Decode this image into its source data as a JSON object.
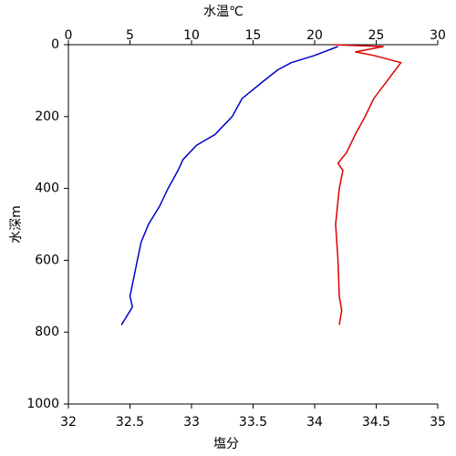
{
  "chart_data": {
    "type": "line",
    "x2label": "水温℃",
    "xlabel": "塩分",
    "ylabel": "水深m",
    "x2label_color": "#0000cc",
    "xlabel_color": "#cc0000",
    "xlim": [
      32,
      35
    ],
    "xticks": [
      32,
      32.5,
      33,
      33.5,
      34,
      34.5,
      35
    ],
    "x2lim": [
      0,
      30
    ],
    "x2ticks": [
      0,
      5,
      10,
      15,
      20,
      25,
      30
    ],
    "ylim": [
      0,
      1000
    ],
    "yticks": [
      0,
      200,
      400,
      600,
      800,
      1000
    ],
    "y_inverted": true,
    "series": [
      {
        "color": "#0000cc",
        "axis": "x2",
        "x": [
          21.9,
          20.0,
          18.1,
          17.0,
          15.9,
          14.1,
          13.3,
          11.9,
          10.4,
          9.3,
          8.9,
          8.1,
          7.4,
          6.5,
          5.9,
          5.6,
          5.3,
          5.0,
          5.2,
          4.3
        ],
        "y": [
          5,
          30,
          50,
          70,
          100,
          150,
          200,
          250,
          280,
          320,
          350,
          400,
          450,
          500,
          550,
          600,
          650,
          700,
          730,
          780
        ]
      },
      {
        "color": "#dd0000",
        "axis": "x",
        "x": [
          34.15,
          34.56,
          34.33,
          34.48,
          34.7,
          34.59,
          34.48,
          34.41,
          34.33,
          34.26,
          34.19,
          34.23,
          34.2,
          34.17,
          34.19,
          34.2,
          34.22,
          34.2
        ],
        "y": [
          0,
          5,
          20,
          30,
          50,
          100,
          150,
          200,
          250,
          300,
          330,
          350,
          400,
          500,
          600,
          700,
          740,
          780
        ]
      }
    ]
  }
}
